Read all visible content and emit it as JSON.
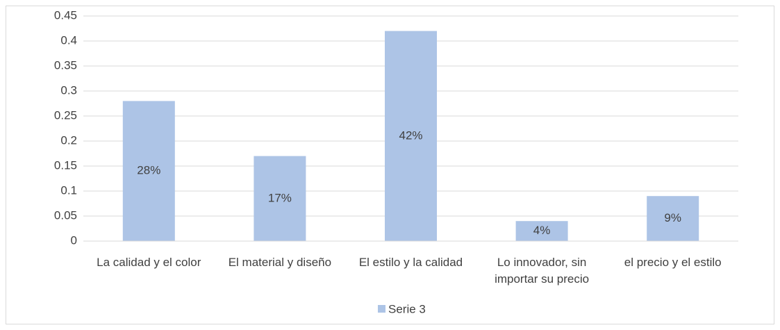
{
  "chart_data": {
    "type": "bar",
    "categories": [
      "La calidad y el color",
      "El material y diseño",
      "El estilo y la calidad",
      "Lo innovador, sin importar su precio",
      "el precio y el estilo"
    ],
    "series": [
      {
        "name": "Serie 3",
        "color": "#adc4e6",
        "values": [
          0.28,
          0.17,
          0.42,
          0.04,
          0.09
        ],
        "value_labels": [
          "28%",
          "17%",
          "42%",
          "4%",
          "9%"
        ]
      }
    ],
    "ylim": [
      0,
      0.45
    ],
    "yticks": [
      0,
      0.05,
      0.1,
      0.15,
      0.2,
      0.25,
      0.3,
      0.35,
      0.4,
      0.45
    ],
    "grid": true,
    "legend": "bottom"
  }
}
